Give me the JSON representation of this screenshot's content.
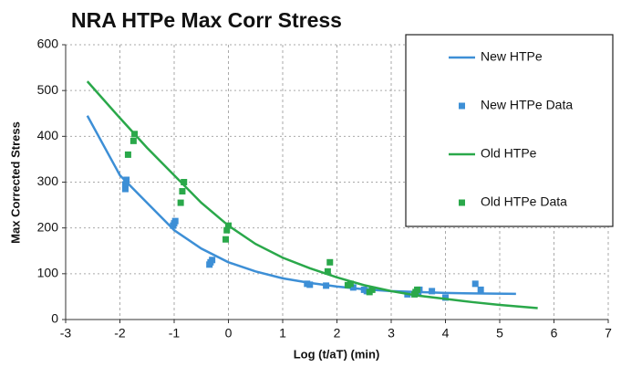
{
  "chart_data": {
    "type": "line",
    "title": "NRA HTPe  Max Corr Stress",
    "x_label": "Log (t/aT) (min)",
    "y_label": "Max Corrected Stress",
    "xlim": [
      -3,
      7
    ],
    "ylim": [
      0,
      600
    ],
    "xticks": [
      -3,
      -2,
      -1,
      0,
      1,
      2,
      3,
      4,
      5,
      6,
      7
    ],
    "yticks": [
      0,
      100,
      200,
      300,
      400,
      500,
      600
    ],
    "grid": true,
    "legend": "upper right",
    "series": [
      {
        "name": "New HTPe",
        "type": "line",
        "color": "#3d8fd6",
        "x": [
          -2.6,
          -2,
          -1.5,
          -1,
          -0.5,
          0,
          0.5,
          1,
          1.5,
          2,
          2.5,
          3,
          3.5,
          4,
          4.5,
          5.3
        ],
        "values": [
          445,
          315,
          255,
          195,
          155,
          125,
          105,
          90,
          80,
          72,
          66,
          62,
          60,
          58,
          57,
          56
        ]
      },
      {
        "name": "New HTPe Data",
        "type": "scatter",
        "color": "#3d8fd6",
        "x": [
          -1.9,
          -1.9,
          -1.88,
          -1.02,
          -1.0,
          -0.98,
          -0.35,
          -0.33,
          -0.3,
          1.45,
          1.5,
          1.8,
          2.3,
          2.5,
          2.55,
          3.3,
          3.5,
          3.52,
          3.75,
          4.0,
          4.55,
          4.65
        ],
        "values": [
          285,
          295,
          305,
          205,
          210,
          215,
          120,
          125,
          130,
          78,
          76,
          74,
          70,
          65,
          62,
          55,
          60,
          65,
          62,
          48,
          78,
          65
        ]
      },
      {
        "name": "Old HTPe",
        "type": "line",
        "color": "#2aa84a",
        "x": [
          -2.6,
          -2,
          -1.5,
          -1,
          -0.5,
          0,
          0.5,
          1,
          1.5,
          2,
          2.5,
          3,
          3.5,
          4,
          4.5,
          5,
          5.7
        ],
        "values": [
          520,
          440,
          375,
          315,
          255,
          205,
          165,
          135,
          112,
          92,
          75,
          62,
          52,
          45,
          38,
          32,
          25
        ]
      },
      {
        "name": "Old HTPe Data",
        "type": "scatter",
        "color": "#2aa84a",
        "x": [
          -1.85,
          -1.75,
          -1.73,
          -0.88,
          -0.85,
          -0.82,
          -0.05,
          -0.03,
          0.0,
          1.83,
          1.87,
          2.2,
          2.25,
          2.6,
          2.65,
          3.43,
          3.45,
          3.48
        ],
        "values": [
          360,
          390,
          405,
          255,
          280,
          300,
          175,
          195,
          205,
          105,
          125,
          75,
          78,
          60,
          65,
          55,
          60,
          65
        ]
      }
    ]
  }
}
